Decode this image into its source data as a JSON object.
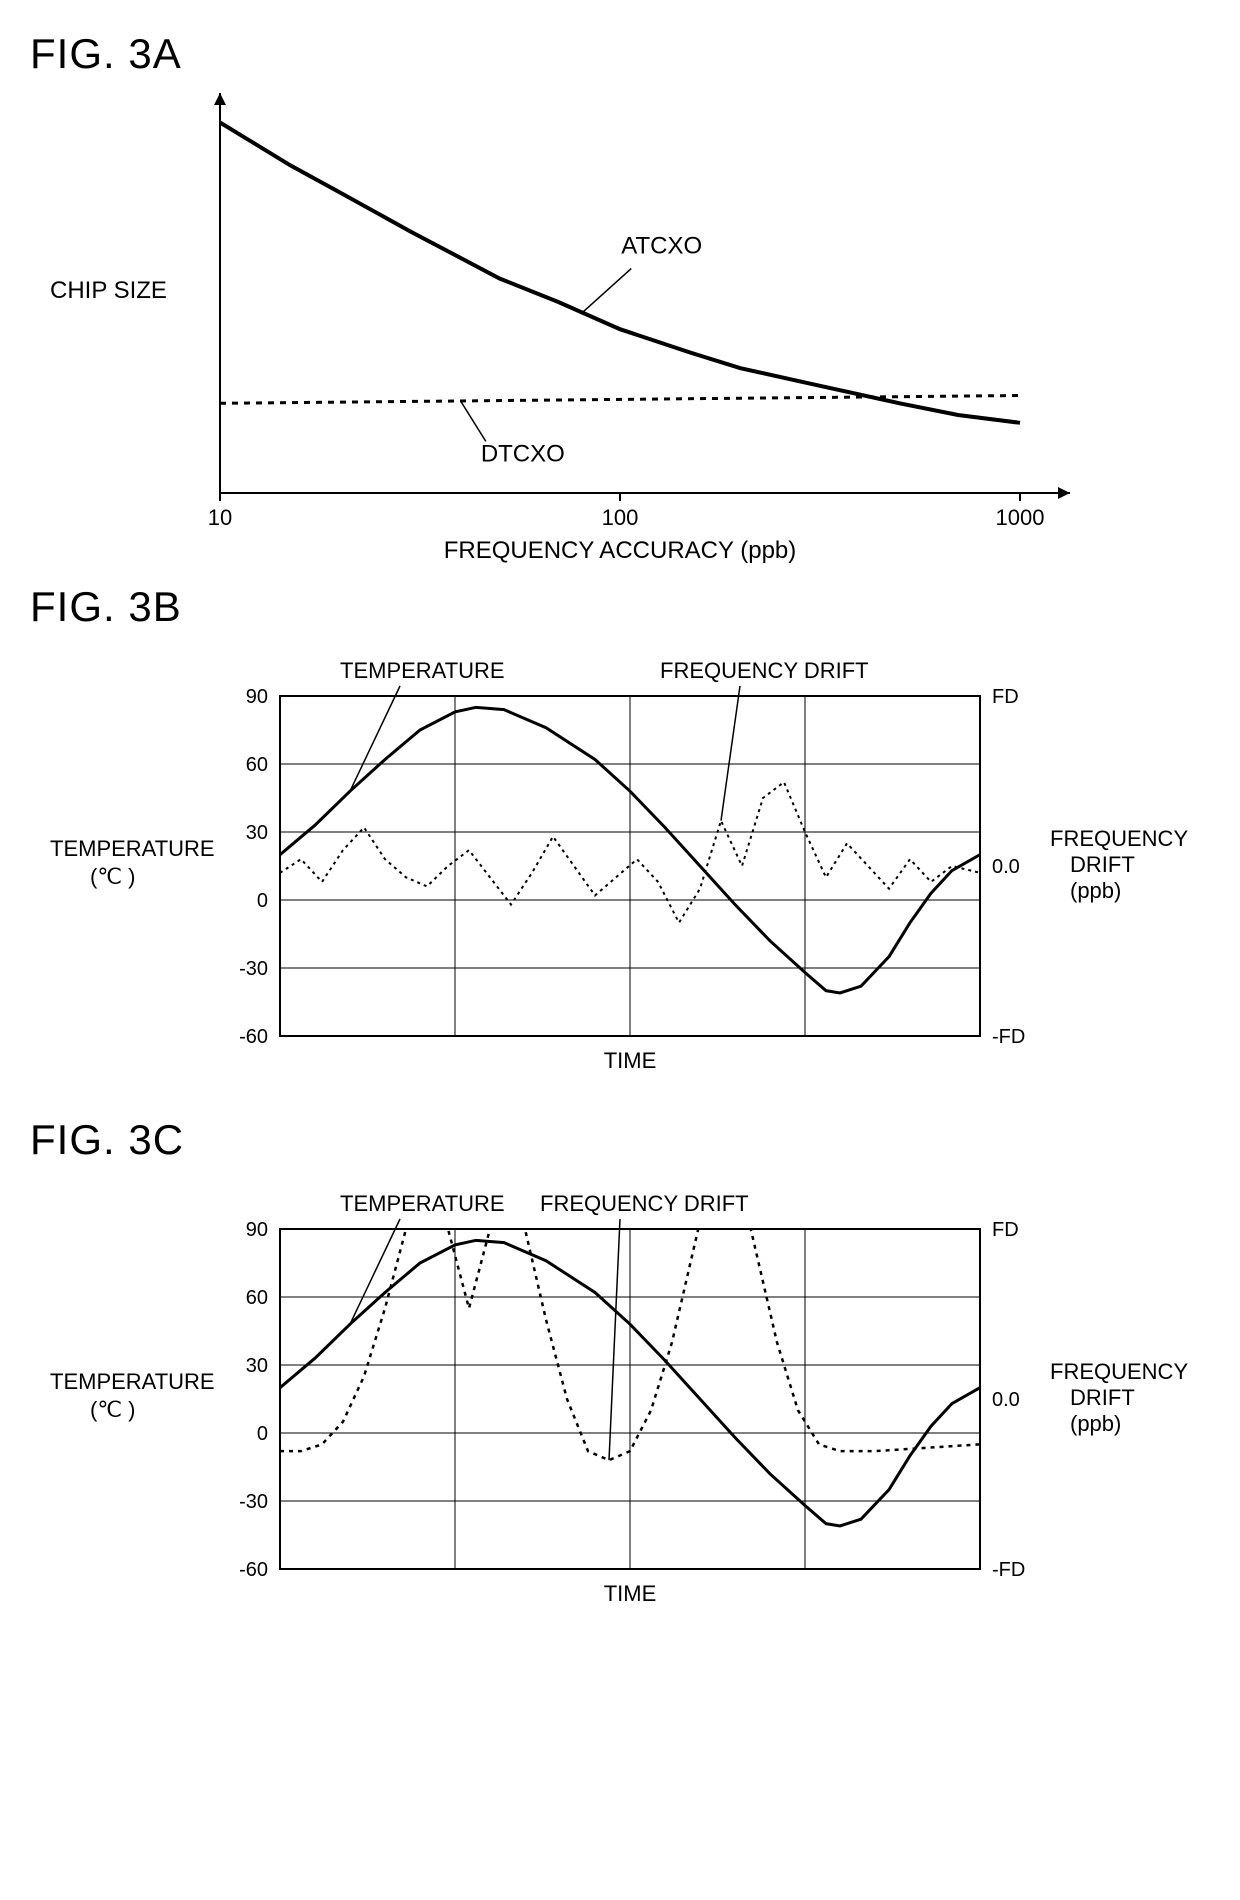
{
  "figA": {
    "title": "FIG. 3A",
    "type": "line",
    "ylabel": "CHIP SIZE",
    "xlabel": "FREQUENCY ACCURACY (ppb)",
    "xticks": [
      10,
      100,
      1000
    ],
    "xtick_labels": [
      "10",
      "100",
      "1000"
    ],
    "xscale": "log",
    "xlim": [
      10,
      1000
    ],
    "ylim": [
      0,
      10
    ],
    "series": [
      {
        "name": "ATCXO",
        "label": "ATCXO",
        "color": "#000000",
        "dash": "none",
        "width": 4,
        "data": [
          [
            10,
            9.5
          ],
          [
            15,
            8.4
          ],
          [
            20,
            7.7
          ],
          [
            30,
            6.7
          ],
          [
            50,
            5.5
          ],
          [
            70,
            4.9
          ],
          [
            100,
            4.2
          ],
          [
            150,
            3.6
          ],
          [
            200,
            3.2
          ],
          [
            300,
            2.8
          ],
          [
            500,
            2.3
          ],
          [
            700,
            2.0
          ],
          [
            1000,
            1.8
          ]
        ]
      },
      {
        "name": "DTCXO",
        "label": "DTCXO",
        "color": "#000000",
        "dash": "6,6",
        "width": 3,
        "data": [
          [
            10,
            2.3
          ],
          [
            1000,
            2.5
          ]
        ]
      }
    ],
    "label_fontsize": 24,
    "tick_fontsize": 22,
    "series_label_fontsize": 24
  },
  "figB": {
    "title": "FIG. 3B",
    "type": "dual-axis-line",
    "xlabel": "TIME",
    "ylabel_left_line1": "TEMPERATURE",
    "ylabel_left_line2": "(℃ )",
    "ylabel_right_line1": "FREQUENCY",
    "ylabel_right_line2": "DRIFT",
    "ylabel_right_line3": "(ppb)",
    "yticks_left": [
      -60,
      -30,
      0,
      30,
      60,
      90
    ],
    "yticks_right_labels": [
      "-FD",
      "0.0",
      "FD"
    ],
    "yticks_right_values": [
      -60,
      15,
      90
    ],
    "ylim": [
      -60,
      90
    ],
    "xlim": [
      0,
      100
    ],
    "xgrid": [
      0,
      25,
      50,
      75,
      100
    ],
    "series": [
      {
        "name": "TEMPERATURE",
        "label": "TEMPERATURE",
        "color": "#000000",
        "dash": "none",
        "width": 3,
        "data": [
          [
            0,
            20
          ],
          [
            5,
            33
          ],
          [
            10,
            48
          ],
          [
            15,
            62
          ],
          [
            20,
            75
          ],
          [
            25,
            83
          ],
          [
            28,
            85
          ],
          [
            32,
            84
          ],
          [
            38,
            76
          ],
          [
            45,
            62
          ],
          [
            50,
            48
          ],
          [
            55,
            32
          ],
          [
            60,
            15
          ],
          [
            65,
            -2
          ],
          [
            70,
            -18
          ],
          [
            75,
            -32
          ],
          [
            78,
            -40
          ],
          [
            80,
            -41
          ],
          [
            83,
            -38
          ],
          [
            87,
            -25
          ],
          [
            90,
            -10
          ],
          [
            93,
            3
          ],
          [
            96,
            13
          ],
          [
            100,
            20
          ]
        ]
      },
      {
        "name": "FREQUENCY_DRIFT",
        "label": "FREQUENCY DRIFT",
        "color": "#000000",
        "dash": "3,4",
        "width": 2,
        "data": [
          [
            0,
            12
          ],
          [
            3,
            18
          ],
          [
            6,
            8
          ],
          [
            9,
            22
          ],
          [
            12,
            32
          ],
          [
            15,
            18
          ],
          [
            18,
            10
          ],
          [
            21,
            6
          ],
          [
            24,
            15
          ],
          [
            27,
            22
          ],
          [
            30,
            10
          ],
          [
            33,
            -2
          ],
          [
            36,
            12
          ],
          [
            39,
            28
          ],
          [
            42,
            15
          ],
          [
            45,
            2
          ],
          [
            48,
            10
          ],
          [
            51,
            18
          ],
          [
            54,
            8
          ],
          [
            57,
            -10
          ],
          [
            60,
            5
          ],
          [
            63,
            35
          ],
          [
            66,
            15
          ],
          [
            69,
            45
          ],
          [
            72,
            52
          ],
          [
            75,
            30
          ],
          [
            78,
            10
          ],
          [
            81,
            25
          ],
          [
            84,
            15
          ],
          [
            87,
            5
          ],
          [
            90,
            18
          ],
          [
            93,
            8
          ],
          [
            96,
            15
          ],
          [
            100,
            12
          ]
        ]
      }
    ],
    "label_fontsize": 22,
    "tick_fontsize": 20
  },
  "figC": {
    "title": "FIG. 3C",
    "type": "dual-axis-line",
    "xlabel": "TIME",
    "ylabel_left_line1": "TEMPERATURE",
    "ylabel_left_line2": "(℃ )",
    "ylabel_right_line1": "FREQUENCY",
    "ylabel_right_line2": "DRIFT",
    "ylabel_right_line3": "(ppb)",
    "yticks_left": [
      -60,
      -30,
      0,
      30,
      60,
      90
    ],
    "yticks_right_labels": [
      "-FD",
      "0.0",
      "FD"
    ],
    "yticks_right_values": [
      -60,
      15,
      90
    ],
    "ylim": [
      -60,
      90
    ],
    "xlim": [
      0,
      100
    ],
    "xgrid": [
      0,
      25,
      50,
      75,
      100
    ],
    "series": [
      {
        "name": "TEMPERATURE",
        "label": "TEMPERATURE",
        "color": "#000000",
        "dash": "none",
        "width": 3,
        "data": [
          [
            0,
            20
          ],
          [
            5,
            33
          ],
          [
            10,
            48
          ],
          [
            15,
            62
          ],
          [
            20,
            75
          ],
          [
            25,
            83
          ],
          [
            28,
            85
          ],
          [
            32,
            84
          ],
          [
            38,
            76
          ],
          [
            45,
            62
          ],
          [
            50,
            48
          ],
          [
            55,
            32
          ],
          [
            60,
            15
          ],
          [
            65,
            -2
          ],
          [
            70,
            -18
          ],
          [
            75,
            -32
          ],
          [
            78,
            -40
          ],
          [
            80,
            -41
          ],
          [
            83,
            -38
          ],
          [
            87,
            -25
          ],
          [
            90,
            -10
          ],
          [
            93,
            3
          ],
          [
            96,
            13
          ],
          [
            100,
            20
          ]
        ]
      },
      {
        "name": "FREQUENCY_DRIFT",
        "label": "FREQUENCY DRIFT",
        "color": "#000000",
        "dash": "4,5",
        "width": 2.5,
        "data": [
          [
            0,
            -8
          ],
          [
            3,
            -8
          ],
          [
            6,
            -5
          ],
          [
            9,
            5
          ],
          [
            12,
            25
          ],
          [
            15,
            55
          ],
          [
            18,
            90
          ],
          [
            20,
            120
          ],
          [
            22,
            120
          ],
          [
            24,
            90
          ],
          [
            27,
            55
          ],
          [
            30,
            90
          ],
          [
            32,
            120
          ],
          [
            35,
            90
          ],
          [
            38,
            50
          ],
          [
            41,
            15
          ],
          [
            44,
            -8
          ],
          [
            47,
            -12
          ],
          [
            50,
            -8
          ],
          [
            53,
            10
          ],
          [
            56,
            40
          ],
          [
            59,
            80
          ],
          [
            62,
            120
          ],
          [
            65,
            120
          ],
          [
            68,
            80
          ],
          [
            71,
            40
          ],
          [
            74,
            10
          ],
          [
            77,
            -5
          ],
          [
            80,
            -8
          ],
          [
            85,
            -8
          ],
          [
            90,
            -7
          ],
          [
            95,
            -6
          ],
          [
            100,
            -5
          ]
        ]
      }
    ],
    "label_fontsize": 22,
    "tick_fontsize": 20
  },
  "colors": {
    "bg": "#ffffff",
    "axis": "#000000",
    "grid": "#000000"
  }
}
